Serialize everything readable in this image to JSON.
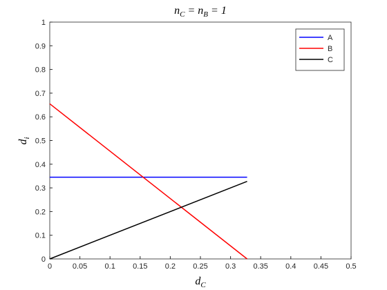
{
  "chart_data": {
    "type": "line",
    "title": "n_C = n_B = 1",
    "x_label": "d_C",
    "y_label": "d_i",
    "x": [
      0,
      0.3275
    ],
    "series": [
      {
        "name": "A",
        "color": "#0000ff",
        "values": [
          0.345,
          0.345
        ]
      },
      {
        "name": "B",
        "color": "#ff0000",
        "values": [
          0.655,
          0
        ]
      },
      {
        "name": "C",
        "color": "#000000",
        "values": [
          0,
          0.3275
        ]
      }
    ],
    "xlim": [
      0,
      0.5
    ],
    "xticks": [
      0,
      0.05,
      0.1,
      0.15,
      0.2,
      0.25,
      0.3,
      0.35,
      0.4,
      0.45,
      0.5
    ],
    "ylim": [
      0,
      1
    ],
    "yticks": [
      0,
      0.1,
      0.2,
      0.3,
      0.4,
      0.5,
      0.6,
      0.7,
      0.8,
      0.9,
      1
    ],
    "grid": false,
    "legend": "upper right"
  }
}
